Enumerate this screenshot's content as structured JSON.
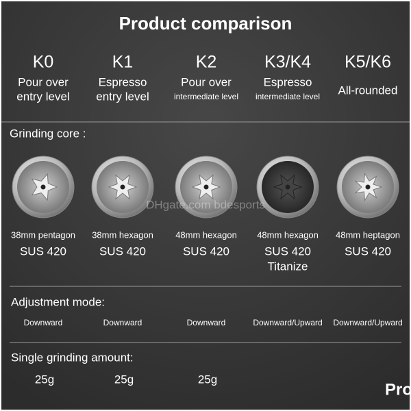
{
  "title": "Product comparison",
  "models": [
    {
      "name": "K0",
      "desc": [
        "Pour over",
        "entry level"
      ],
      "core": [
        "38mm pentagon",
        "SUS 420"
      ],
      "adjustment": "Downward"
    },
    {
      "name": "K1",
      "desc": [
        "Espresso",
        "entry level"
      ],
      "core": [
        "38mm hexagon",
        "SUS 420"
      ],
      "adjustment": "Downward"
    },
    {
      "name": "K2",
      "desc": [
        "Pour over",
        "intermediate level"
      ],
      "core": [
        "48mm hexagon",
        "SUS 420"
      ],
      "adjustment": "Downward"
    },
    {
      "name": "K3/K4",
      "desc": [
        "Espresso",
        "intermediate level"
      ],
      "core": [
        "48mm hexagon",
        "SUS 420",
        "Titanize"
      ],
      "adjustment": "Downward/Upward"
    },
    {
      "name": "K5/K6",
      "desc": [
        "All-rounded"
      ],
      "core": [
        "48mm heptagon",
        "SUS 420"
      ],
      "adjustment": "Downward/Upward"
    }
  ],
  "sections": {
    "core": "Grinding core :",
    "adjustment": "Adjustment  mode:",
    "amount": "Single grinding amount:"
  },
  "amounts": [
    "25g",
    "25g",
    "25g"
  ],
  "watermark": "DHgate.com bdesports",
  "corner_text": "Pro"
}
